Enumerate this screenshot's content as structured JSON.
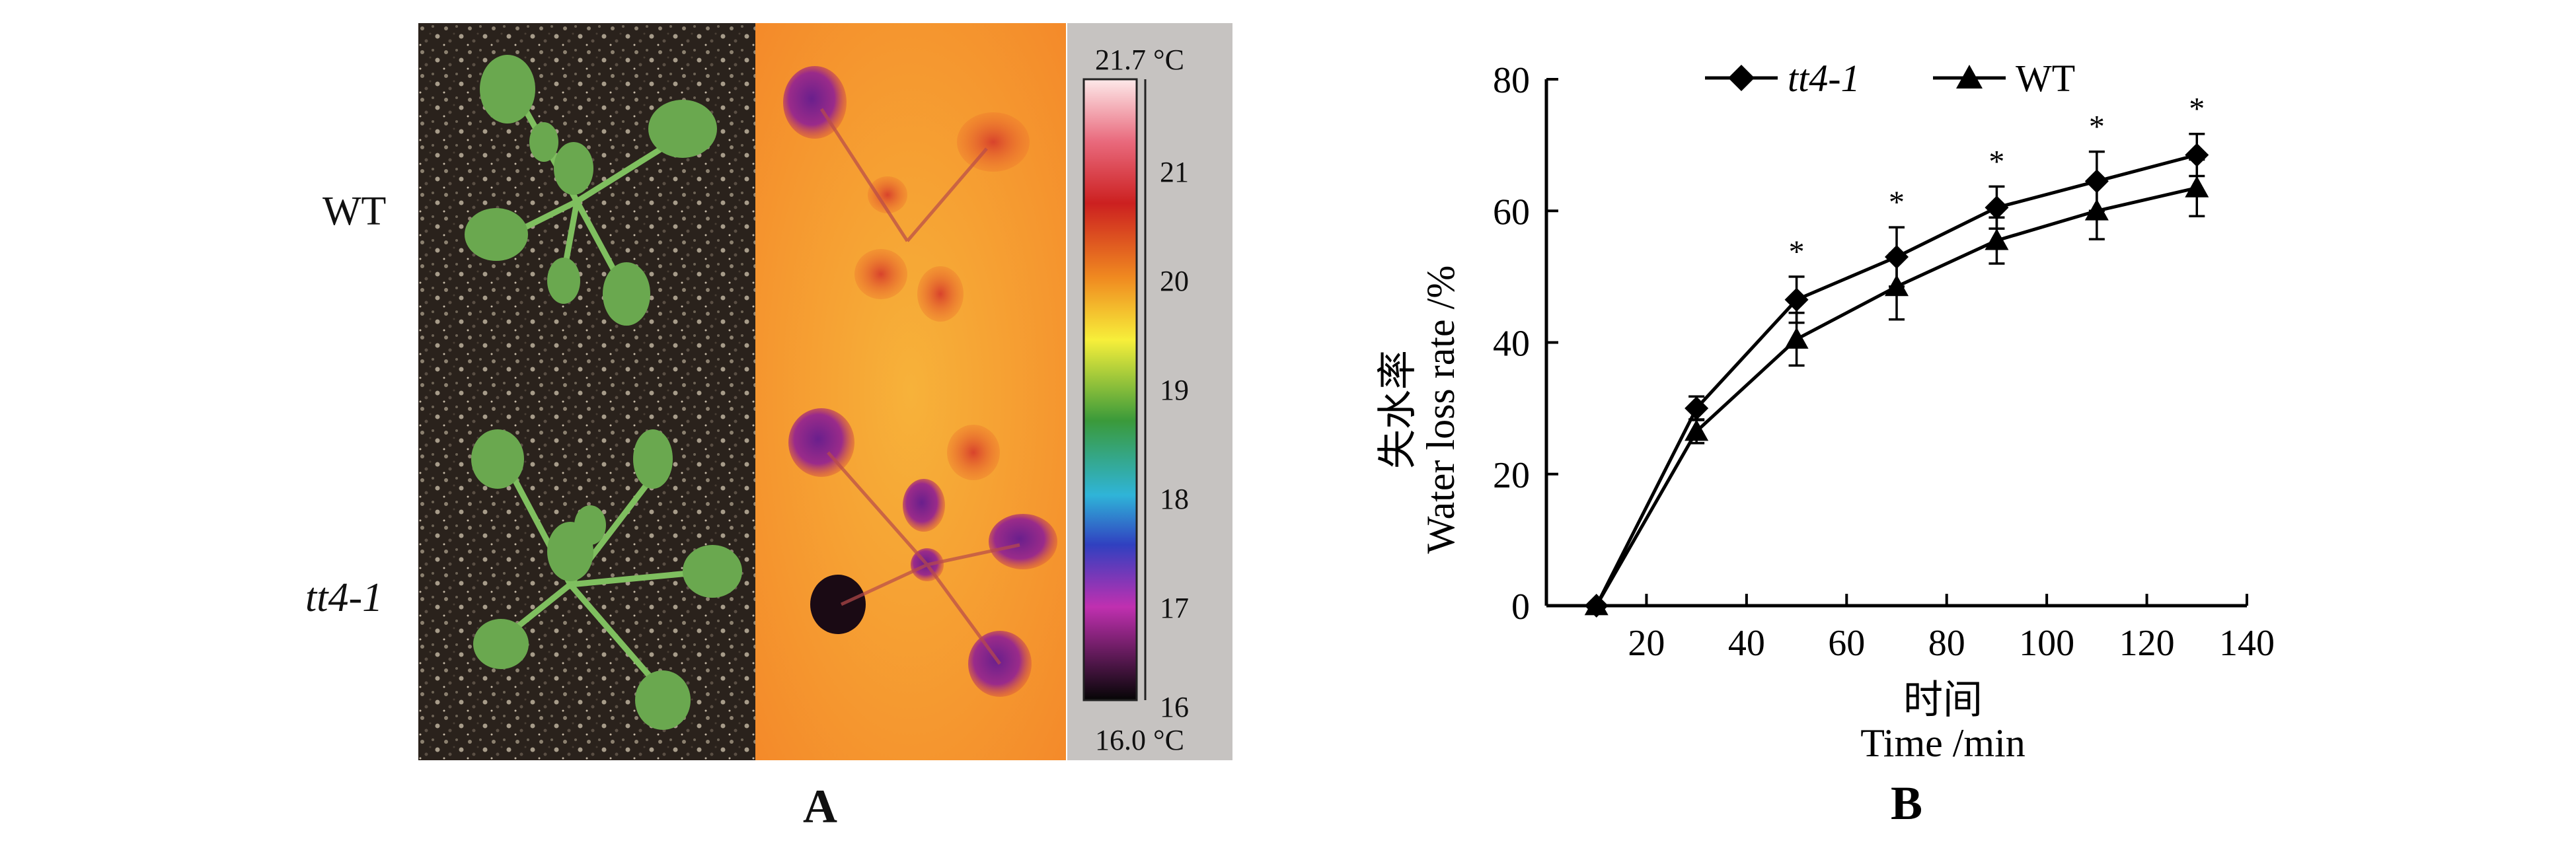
{
  "panels": {
    "a_label": "A",
    "b_label": "B"
  },
  "panel_a": {
    "row_labels": [
      "WT",
      "tt4-1"
    ],
    "temperature_scale": {
      "max_label": "21.7 °C",
      "min_label": "16.0 °C",
      "ticks": [
        "21",
        "20",
        "19",
        "18",
        "17",
        "16"
      ]
    }
  },
  "chart_data": {
    "type": "line",
    "xlabel_cn": "时间",
    "xlabel": "Time /min",
    "ylabel_cn": "失水率",
    "ylabel": "Water loss rate /%",
    "xlim": [
      0,
      140
    ],
    "ylim": [
      0,
      80
    ],
    "xticks": [
      20,
      40,
      60,
      80,
      100,
      120,
      140
    ],
    "yticks": [
      0,
      20,
      40,
      60,
      80
    ],
    "legend_placement": "top",
    "grid": false,
    "series": [
      {
        "name": "tt4-1",
        "marker": "diamond",
        "x": [
          10,
          30,
          50,
          70,
          90,
          110,
          130
        ],
        "y": [
          0,
          30,
          46.5,
          53,
          60.5,
          64.5,
          68.5
        ],
        "err": [
          0,
          1.8,
          3.5,
          4.5,
          3.2,
          4.5,
          3.2
        ]
      },
      {
        "name": "WT",
        "marker": "triangle",
        "x": [
          10,
          30,
          50,
          70,
          90,
          110,
          130
        ],
        "y": [
          0,
          26.5,
          40.5,
          48.5,
          55.5,
          60,
          63.5
        ],
        "err": [
          0,
          1.8,
          4,
          5,
          3.5,
          4.3,
          4.3
        ]
      }
    ],
    "annotations": [
      {
        "x": 50,
        "text": "*"
      },
      {
        "x": 70,
        "text": "*"
      },
      {
        "x": 90,
        "text": "*"
      },
      {
        "x": 110,
        "text": "*"
      },
      {
        "x": 130,
        "text": "*"
      }
    ]
  }
}
